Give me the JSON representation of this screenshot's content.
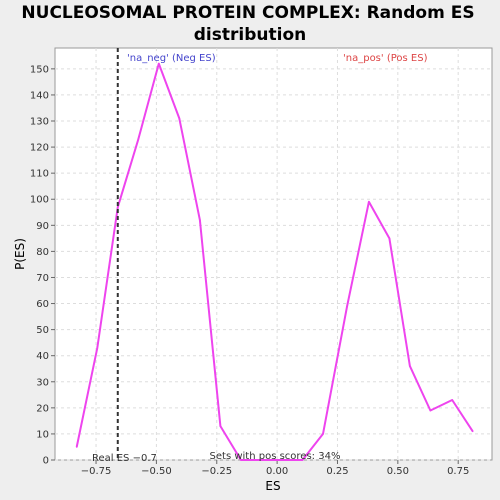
{
  "chart_data": {
    "type": "line",
    "title_lines": [
      "NUCLEOSOMAL PROTEIN COMPLEX: Random ES",
      "distribution"
    ],
    "xlabel": "ES",
    "ylabel": "P(ES)",
    "xlim": [
      -0.92,
      0.89
    ],
    "ylim": [
      0,
      158
    ],
    "xticks": [
      -0.75,
      -0.5,
      -0.25,
      0.0,
      0.25,
      0.5,
      0.75
    ],
    "xtick_labels": [
      "−0.75",
      "−0.50",
      "−0.25",
      "0.00",
      "0.25",
      "0.50",
      "0.75"
    ],
    "yticks": [
      0,
      10,
      20,
      30,
      40,
      50,
      60,
      70,
      80,
      90,
      100,
      110,
      120,
      130,
      140,
      150
    ],
    "grid": true,
    "series": [
      {
        "color": "#ee44ee",
        "x": [
          -0.83,
          -0.745,
          -0.66,
          -0.575,
          -0.49,
          -0.405,
          -0.32,
          -0.235,
          -0.15,
          -0.065,
          0.02,
          0.105,
          0.19,
          0.29,
          0.38,
          0.465,
          0.55,
          0.635,
          0.725,
          0.81
        ],
        "y": [
          5,
          43,
          97,
          123,
          152,
          131,
          92,
          13,
          0,
          0,
          0,
          0,
          10,
          59,
          99,
          85,
          36,
          19,
          23,
          11
        ]
      }
    ],
    "real_es": {
      "x": -0.66,
      "label": "Real ES −0.7",
      "color": "#333333"
    },
    "annotations": {
      "neg_label": "'na_neg' (Neg ES)",
      "neg_color": "#4444cc",
      "pos_label": "'na_pos' (Pos ES)",
      "pos_color": "#dd4444",
      "pos_scores": "Sets with pos scores: 34%"
    }
  }
}
